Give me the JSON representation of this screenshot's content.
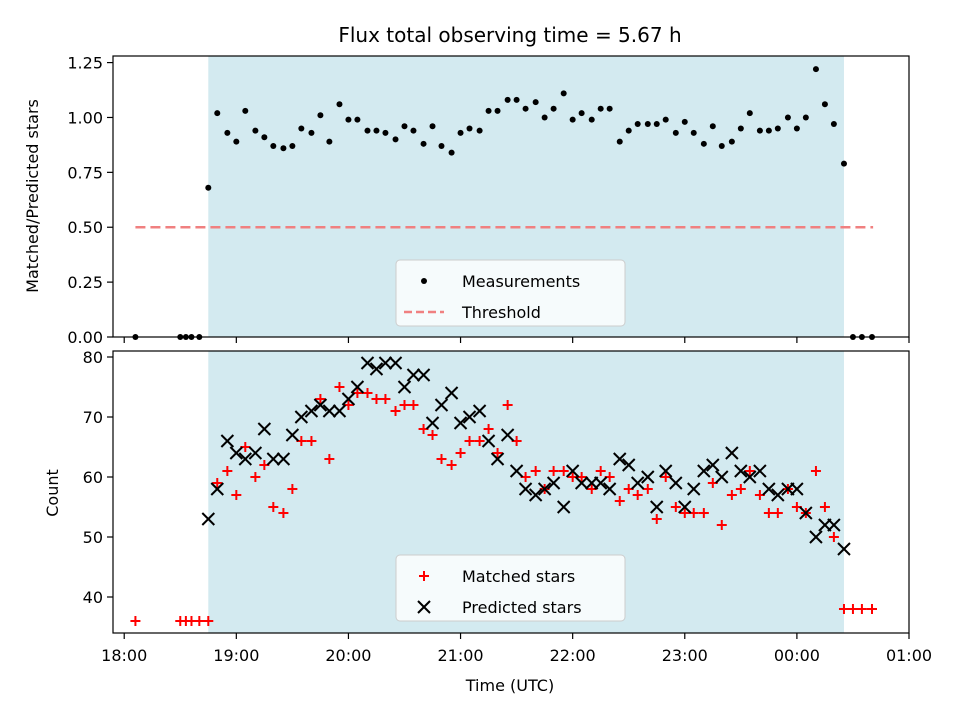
{
  "chart_data": [
    {
      "type": "scatter",
      "title": "Flux total observing time = 5.67 h",
      "xlabel": "",
      "ylabel": "Matched/Predicted stars",
      "xlim": [
        17.9,
        25.0
      ],
      "ylim": [
        0.0,
        1.28
      ],
      "yticks": [
        "0.00",
        "0.25",
        "0.50",
        "0.75",
        "1.00",
        "1.25"
      ],
      "shaded_span": [
        18.75,
        24.42
      ],
      "shade_color": "#d3eaf0",
      "threshold": {
        "name": "Threshold",
        "y": 0.5,
        "x_from": 18.1,
        "x_to": 24.68,
        "color": "#f08080"
      },
      "legend": {
        "position": "lower-center",
        "entries": [
          "Measurements",
          "Threshold"
        ]
      },
      "series": [
        {
          "name": "Measurements",
          "marker": "dot",
          "color": "#000000",
          "points": [
            [
              18.1,
              0.0
            ],
            [
              18.5,
              0.0
            ],
            [
              18.55,
              0.0
            ],
            [
              18.6,
              0.0
            ],
            [
              18.67,
              0.0
            ],
            [
              18.75,
              0.68
            ],
            [
              18.83,
              1.02
            ],
            [
              18.92,
              0.93
            ],
            [
              19.0,
              0.89
            ],
            [
              19.08,
              1.03
            ],
            [
              19.17,
              0.94
            ],
            [
              19.25,
              0.91
            ],
            [
              19.33,
              0.87
            ],
            [
              19.42,
              0.86
            ],
            [
              19.5,
              0.87
            ],
            [
              19.58,
              0.95
            ],
            [
              19.67,
              0.93
            ],
            [
              19.75,
              1.01
            ],
            [
              19.83,
              0.89
            ],
            [
              19.92,
              1.06
            ],
            [
              20.0,
              0.99
            ],
            [
              20.08,
              0.99
            ],
            [
              20.17,
              0.94
            ],
            [
              20.25,
              0.94
            ],
            [
              20.33,
              0.93
            ],
            [
              20.42,
              0.9
            ],
            [
              20.5,
              0.96
            ],
            [
              20.58,
              0.94
            ],
            [
              20.67,
              0.88
            ],
            [
              20.75,
              0.96
            ],
            [
              20.83,
              0.87
            ],
            [
              20.92,
              0.84
            ],
            [
              21.0,
              0.93
            ],
            [
              21.08,
              0.95
            ],
            [
              21.17,
              0.94
            ],
            [
              21.25,
              1.03
            ],
            [
              21.33,
              1.03
            ],
            [
              21.42,
              1.08
            ],
            [
              21.5,
              1.08
            ],
            [
              21.58,
              1.04
            ],
            [
              21.67,
              1.07
            ],
            [
              21.75,
              1.0
            ],
            [
              21.83,
              1.04
            ],
            [
              21.92,
              1.11
            ],
            [
              22.0,
              0.99
            ],
            [
              22.08,
              1.02
            ],
            [
              22.17,
              0.99
            ],
            [
              22.25,
              1.04
            ],
            [
              22.33,
              1.04
            ],
            [
              22.42,
              0.89
            ],
            [
              22.5,
              0.94
            ],
            [
              22.58,
              0.97
            ],
            [
              22.67,
              0.97
            ],
            [
              22.75,
              0.97
            ],
            [
              22.83,
              0.99
            ],
            [
              22.92,
              0.93
            ],
            [
              23.0,
              0.98
            ],
            [
              23.08,
              0.93
            ],
            [
              23.17,
              0.88
            ],
            [
              23.25,
              0.96
            ],
            [
              23.33,
              0.87
            ],
            [
              23.42,
              0.89
            ],
            [
              23.5,
              0.95
            ],
            [
              23.58,
              1.02
            ],
            [
              23.67,
              0.94
            ],
            [
              23.75,
              0.94
            ],
            [
              23.83,
              0.95
            ],
            [
              23.92,
              1.0
            ],
            [
              24.0,
              0.95
            ],
            [
              24.08,
              1.0
            ],
            [
              24.17,
              1.22
            ],
            [
              24.25,
              1.06
            ],
            [
              24.33,
              0.97
            ],
            [
              24.42,
              0.79
            ],
            [
              24.5,
              0.0
            ],
            [
              24.58,
              0.0
            ],
            [
              24.67,
              0.0
            ]
          ]
        }
      ]
    },
    {
      "type": "scatter",
      "title": "",
      "xlabel": "Time (UTC)",
      "ylabel": "Count",
      "xlim": [
        17.9,
        25.0
      ],
      "ylim": [
        34,
        81
      ],
      "yticks": [
        "40",
        "50",
        "60",
        "70",
        "80"
      ],
      "xticks": [
        {
          "value": 18,
          "label": "18:00"
        },
        {
          "value": 19,
          "label": "19:00"
        },
        {
          "value": 20,
          "label": "20:00"
        },
        {
          "value": 21,
          "label": "21:00"
        },
        {
          "value": 22,
          "label": "22:00"
        },
        {
          "value": 23,
          "label": "23:00"
        },
        {
          "value": 24,
          "label": "00:00"
        },
        {
          "value": 25,
          "label": "01:00"
        }
      ],
      "shaded_span": [
        18.75,
        24.42
      ],
      "shade_color": "#d3eaf0",
      "legend": {
        "position": "lower-center",
        "entries": [
          "Matched stars",
          "Predicted stars"
        ]
      },
      "series": [
        {
          "name": "Matched stars",
          "marker": "plus",
          "color": "#ff0000",
          "points": [
            [
              18.1,
              36
            ],
            [
              18.5,
              36
            ],
            [
              18.55,
              36
            ],
            [
              18.6,
              36
            ],
            [
              18.67,
              36
            ],
            [
              18.75,
              36
            ],
            [
              18.83,
              59
            ],
            [
              18.92,
              61
            ],
            [
              19.0,
              57
            ],
            [
              19.08,
              65
            ],
            [
              19.17,
              60
            ],
            [
              19.25,
              62
            ],
            [
              19.33,
              55
            ],
            [
              19.42,
              54
            ],
            [
              19.5,
              58
            ],
            [
              19.58,
              66
            ],
            [
              19.67,
              66
            ],
            [
              19.75,
              73
            ],
            [
              19.83,
              63
            ],
            [
              19.92,
              75
            ],
            [
              20.0,
              72
            ],
            [
              20.08,
              74
            ],
            [
              20.17,
              74
            ],
            [
              20.25,
              73
            ],
            [
              20.33,
              73
            ],
            [
              20.42,
              71
            ],
            [
              20.5,
              72
            ],
            [
              20.58,
              72
            ],
            [
              20.67,
              68
            ],
            [
              20.75,
              67
            ],
            [
              20.83,
              63
            ],
            [
              20.92,
              62
            ],
            [
              21.0,
              64
            ],
            [
              21.08,
              66
            ],
            [
              21.17,
              66
            ],
            [
              21.25,
              68
            ],
            [
              21.33,
              64
            ],
            [
              21.42,
              72
            ],
            [
              21.5,
              66
            ],
            [
              21.58,
              60
            ],
            [
              21.67,
              61
            ],
            [
              21.75,
              58
            ],
            [
              21.83,
              61
            ],
            [
              21.92,
              61
            ],
            [
              22.0,
              60
            ],
            [
              22.08,
              60
            ],
            [
              22.17,
              58
            ],
            [
              22.25,
              61
            ],
            [
              22.33,
              60
            ],
            [
              22.42,
              56
            ],
            [
              22.5,
              58
            ],
            [
              22.58,
              57
            ],
            [
              22.67,
              58
            ],
            [
              22.75,
              53
            ],
            [
              22.83,
              60
            ],
            [
              22.92,
              55
            ],
            [
              23.0,
              54
            ],
            [
              23.08,
              54
            ],
            [
              23.17,
              54
            ],
            [
              23.25,
              59
            ],
            [
              23.33,
              52
            ],
            [
              23.42,
              57
            ],
            [
              23.5,
              58
            ],
            [
              23.58,
              61
            ],
            [
              23.67,
              57
            ],
            [
              23.75,
              54
            ],
            [
              23.83,
              54
            ],
            [
              23.92,
              58
            ],
            [
              24.0,
              55
            ],
            [
              24.08,
              54
            ],
            [
              24.17,
              61
            ],
            [
              24.25,
              55
            ],
            [
              24.33,
              50
            ],
            [
              24.42,
              38
            ],
            [
              24.5,
              38
            ],
            [
              24.58,
              38
            ],
            [
              24.67,
              38
            ]
          ]
        },
        {
          "name": "Predicted stars",
          "marker": "x",
          "color": "#000000",
          "points": [
            [
              18.75,
              53
            ],
            [
              18.83,
              58
            ],
            [
              18.92,
              66
            ],
            [
              19.0,
              64
            ],
            [
              19.08,
              63
            ],
            [
              19.17,
              64
            ],
            [
              19.25,
              68
            ],
            [
              19.33,
              63
            ],
            [
              19.42,
              63
            ],
            [
              19.5,
              67
            ],
            [
              19.58,
              70
            ],
            [
              19.67,
              71
            ],
            [
              19.75,
              72
            ],
            [
              19.83,
              71
            ],
            [
              19.92,
              71
            ],
            [
              20.0,
              73
            ],
            [
              20.08,
              75
            ],
            [
              20.17,
              79
            ],
            [
              20.25,
              78
            ],
            [
              20.33,
              79
            ],
            [
              20.42,
              79
            ],
            [
              20.5,
              75
            ],
            [
              20.58,
              77
            ],
            [
              20.67,
              77
            ],
            [
              20.75,
              69
            ],
            [
              20.83,
              72
            ],
            [
              20.92,
              74
            ],
            [
              21.0,
              69
            ],
            [
              21.08,
              70
            ],
            [
              21.17,
              71
            ],
            [
              21.25,
              66
            ],
            [
              21.33,
              63
            ],
            [
              21.42,
              67
            ],
            [
              21.5,
              61
            ],
            [
              21.58,
              58
            ],
            [
              21.67,
              57
            ],
            [
              21.75,
              58
            ],
            [
              21.83,
              59
            ],
            [
              21.92,
              55
            ],
            [
              22.0,
              61
            ],
            [
              22.08,
              59
            ],
            [
              22.17,
              59
            ],
            [
              22.25,
              59
            ],
            [
              22.33,
              58
            ],
            [
              22.42,
              63
            ],
            [
              22.5,
              62
            ],
            [
              22.58,
              59
            ],
            [
              22.67,
              60
            ],
            [
              22.75,
              55
            ],
            [
              22.83,
              61
            ],
            [
              22.92,
              59
            ],
            [
              23.0,
              55
            ],
            [
              23.08,
              58
            ],
            [
              23.17,
              61
            ],
            [
              23.25,
              62
            ],
            [
              23.33,
              60
            ],
            [
              23.42,
              64
            ],
            [
              23.5,
              61
            ],
            [
              23.58,
              60
            ],
            [
              23.67,
              61
            ],
            [
              23.75,
              58
            ],
            [
              23.83,
              57
            ],
            [
              23.92,
              58
            ],
            [
              24.0,
              58
            ],
            [
              24.08,
              54
            ],
            [
              24.17,
              50
            ],
            [
              24.25,
              52
            ],
            [
              24.33,
              52
            ],
            [
              24.42,
              48
            ]
          ]
        }
      ]
    }
  ]
}
